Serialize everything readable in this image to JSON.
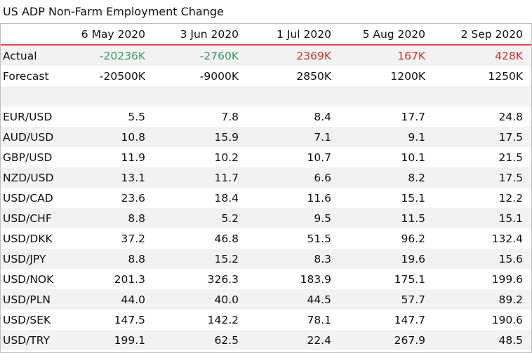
{
  "title": "US ADP Non-Farm Employment Change",
  "header": {
    "corner": "",
    "dates": [
      "6 May 2020",
      "3 Jun 2020",
      "1 Jul 2020",
      "5 Aug 2020",
      "2 Sep 2020"
    ]
  },
  "actual": {
    "label": "Actual",
    "values": [
      "-20236K",
      "-2760K",
      "2369K",
      "167K",
      "428K"
    ],
    "colors": [
      "green",
      "green",
      "red",
      "red",
      "red"
    ]
  },
  "forecast": {
    "label": "Forecast",
    "values": [
      "-20500K",
      "-9000K",
      "2850K",
      "1200K",
      "1250K"
    ]
  },
  "pairs": [
    {
      "label": "EUR/USD",
      "values": [
        "5.5",
        "7.8",
        "8.4",
        "17.7",
        "24.8"
      ]
    },
    {
      "label": "AUD/USD",
      "values": [
        "10.8",
        "15.9",
        "7.1",
        "9.1",
        "17.5"
      ]
    },
    {
      "label": "GBP/USD",
      "values": [
        "11.9",
        "10.2",
        "10.7",
        "10.1",
        "21.5"
      ]
    },
    {
      "label": "NZD/USD",
      "values": [
        "13.1",
        "11.7",
        "6.6",
        "8.2",
        "17.5"
      ]
    },
    {
      "label": "USD/CAD",
      "values": [
        "23.6",
        "18.4",
        "11.6",
        "15.1",
        "12.2"
      ]
    },
    {
      "label": "USD/CHF",
      "values": [
        "8.8",
        "5.2",
        "9.5",
        "11.5",
        "15.1"
      ]
    },
    {
      "label": "USD/DKK",
      "values": [
        "37.2",
        "46.8",
        "51.5",
        "96.2",
        "132.4"
      ]
    },
    {
      "label": "USD/JPY",
      "values": [
        "8.8",
        "15.2",
        "8.3",
        "19.6",
        "15.6"
      ]
    },
    {
      "label": "USD/NOK",
      "values": [
        "201.3",
        "326.3",
        "183.9",
        "175.1",
        "199.6"
      ]
    },
    {
      "label": "USD/PLN",
      "values": [
        "44.0",
        "40.0",
        "44.5",
        "57.7",
        "89.2"
      ]
    },
    {
      "label": "USD/SEK",
      "values": [
        "147.5",
        "142.2",
        "78.1",
        "147.7",
        "190.6"
      ]
    },
    {
      "label": "USD/TRY",
      "values": [
        "199.1",
        "62.5",
        "22.4",
        "267.9",
        "48.5"
      ]
    }
  ]
}
